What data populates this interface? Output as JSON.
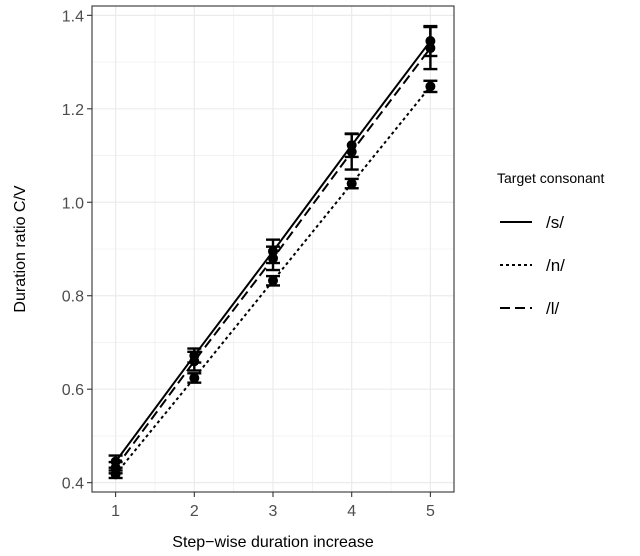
{
  "chart_data": {
    "type": "line",
    "xlabel": "Step−wise duration increase",
    "ylabel": "Duration ratio C/V",
    "x": [
      1,
      2,
      3,
      4,
      5
    ],
    "x_ticks": [
      "1",
      "2",
      "3",
      "4",
      "5"
    ],
    "y_ticks": [
      "0.4",
      "0.6",
      "0.8",
      "1.0",
      "1.2",
      "1.4"
    ],
    "xlim": [
      0.7,
      5.3
    ],
    "ylim": [
      0.38,
      1.42
    ],
    "grid": true,
    "legend": {
      "title": "Target consonant",
      "placement": "right"
    },
    "series": [
      {
        "name": "/s/",
        "line_style": "solid",
        "values": [
          0.445,
          0.672,
          0.895,
          1.122,
          1.345
        ],
        "error": [
          0.013,
          0.015,
          0.025,
          0.025,
          0.032
        ]
      },
      {
        "name": "/n/",
        "line_style": "dotted",
        "values": [
          0.418,
          0.624,
          0.832,
          1.04,
          1.248
        ],
        "error": [
          0.008,
          0.01,
          0.01,
          0.01,
          0.012
        ]
      },
      {
        "name": "/l/",
        "line_style": "dashed",
        "values": [
          0.432,
          0.66,
          0.88,
          1.108,
          1.33
        ],
        "error": [
          0.012,
          0.02,
          0.025,
          0.038,
          0.045
        ]
      }
    ]
  }
}
